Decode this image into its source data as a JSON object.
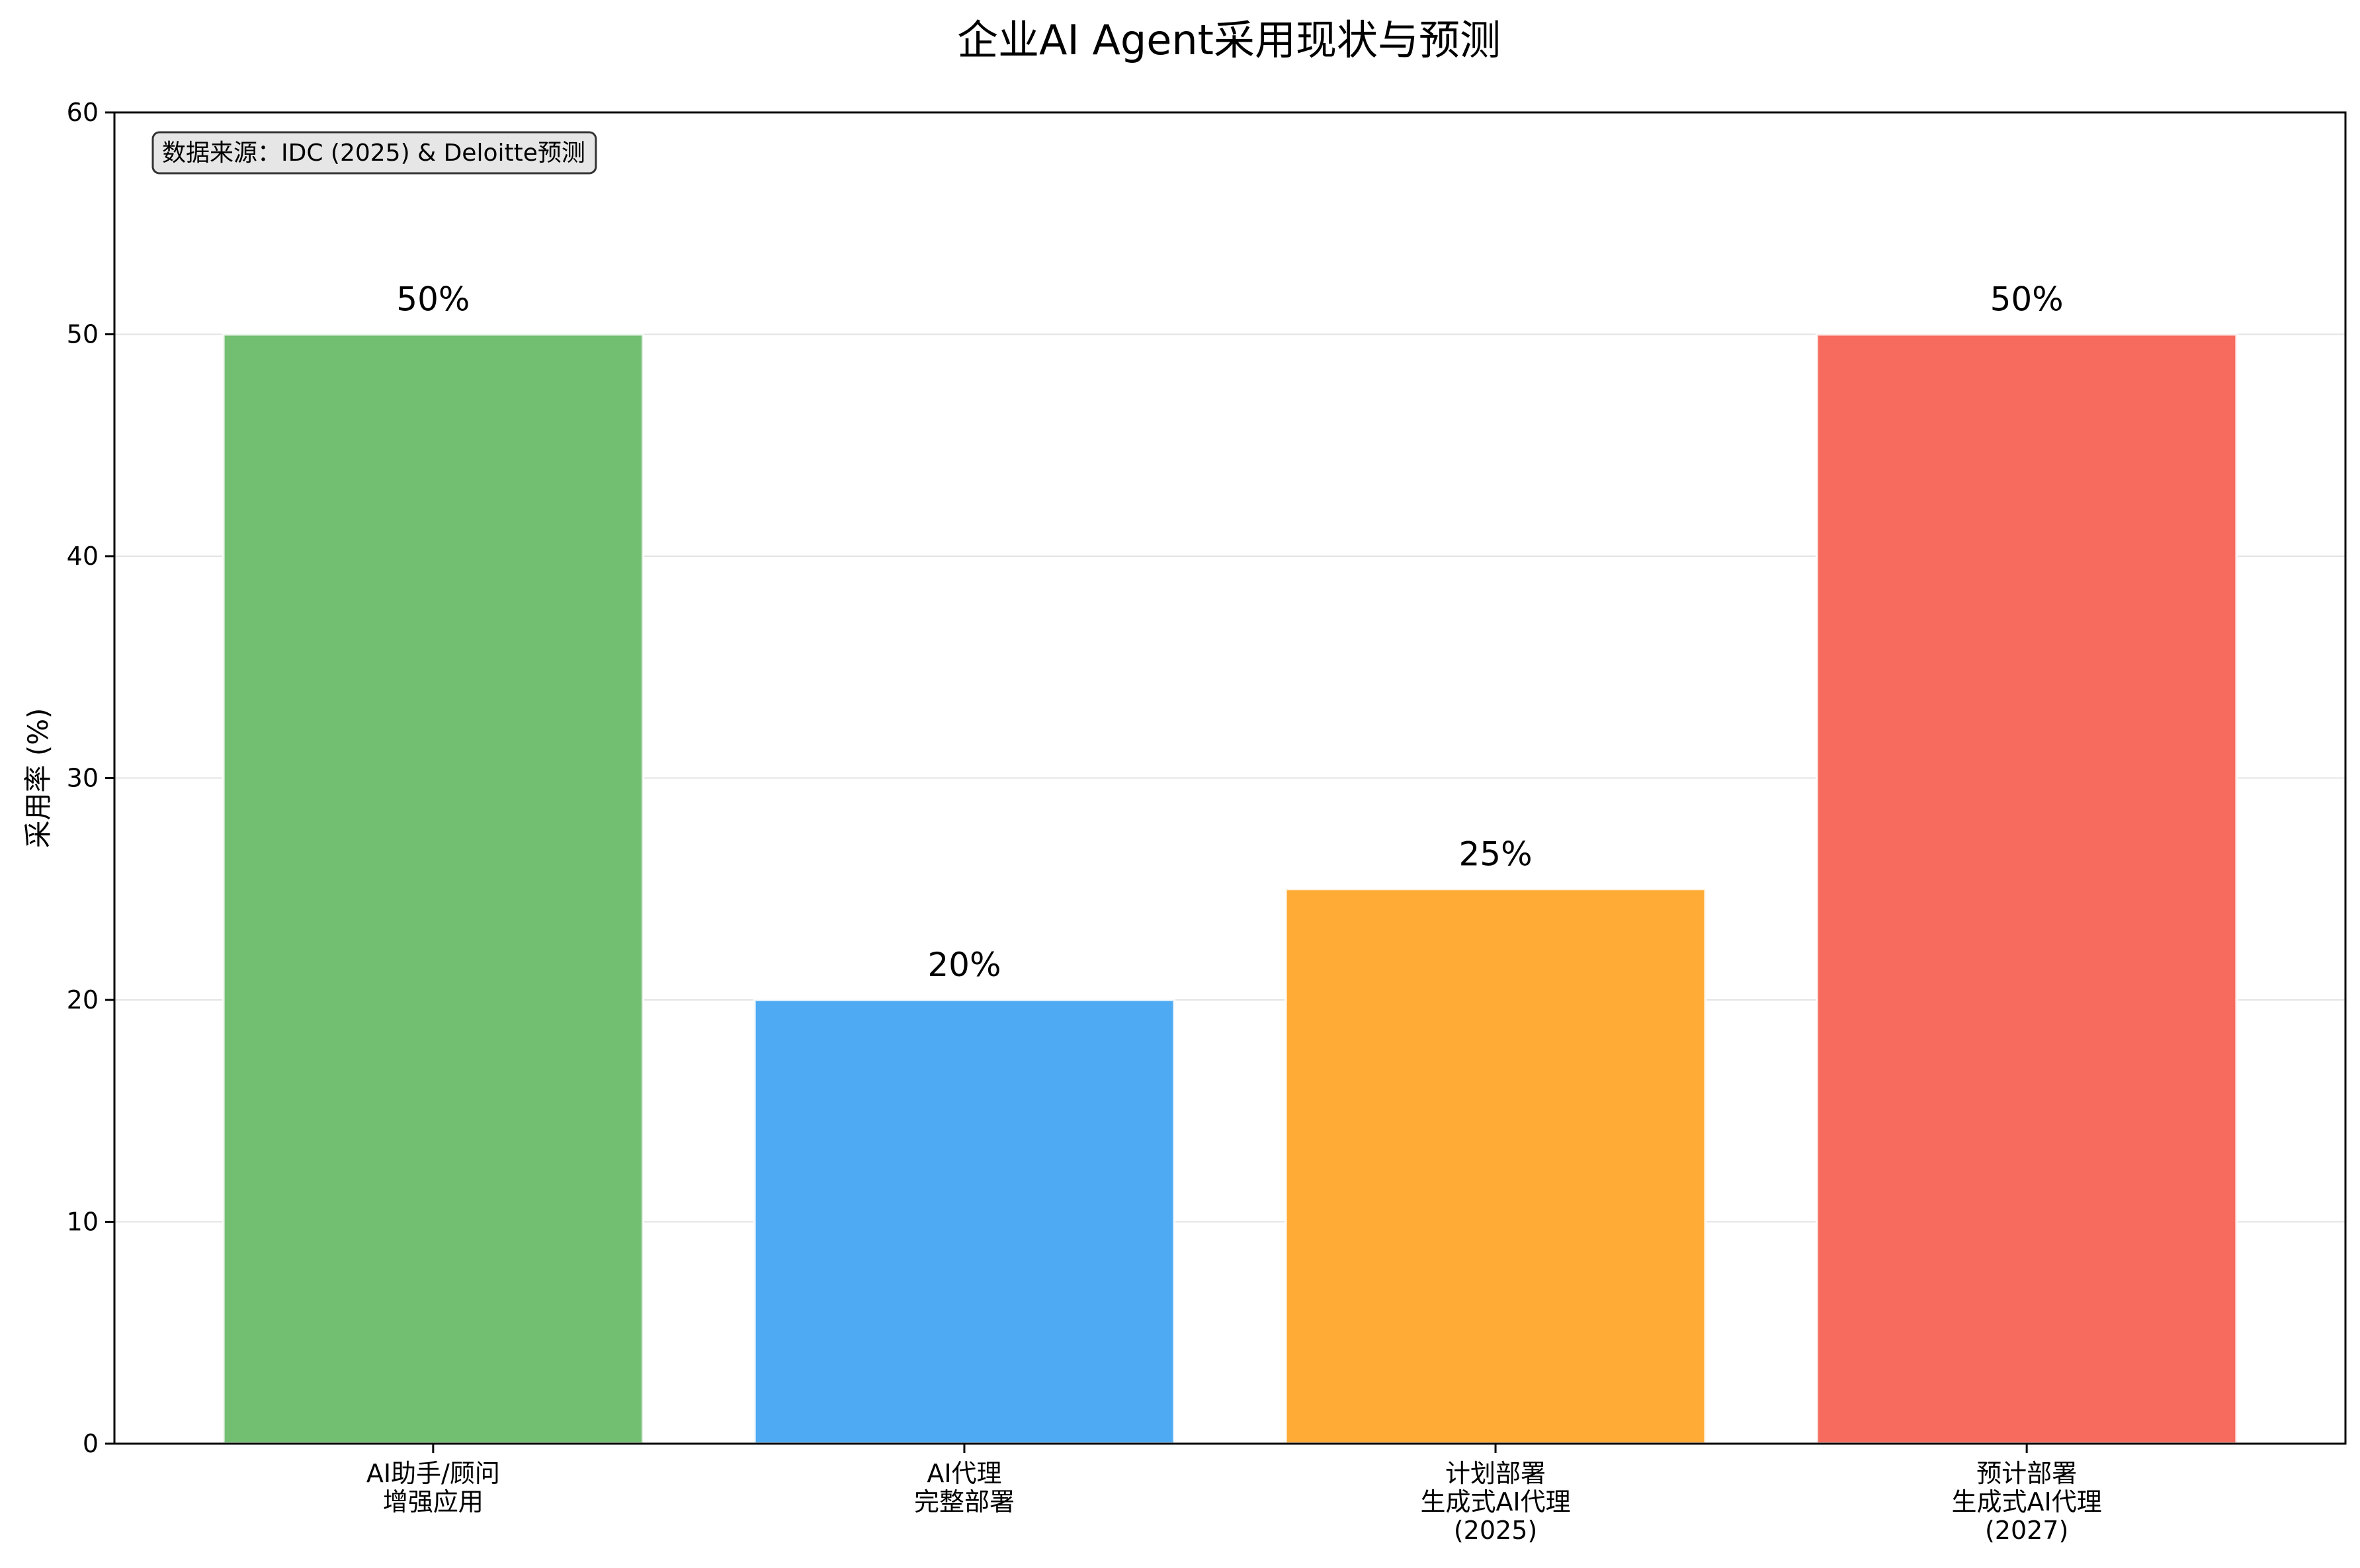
{
  "chart_data": {
    "type": "bar",
    "title": "企业AI Agent采用现状与预测",
    "xlabel": "",
    "ylabel": "采用率 (%)",
    "ylim": [
      0,
      60
    ],
    "yticks": [
      "0",
      "10",
      "20",
      "30",
      "40",
      "50",
      "60"
    ],
    "grid": "horizontal",
    "categories": [
      [
        "AI助手/顾问",
        "增强应用"
      ],
      [
        "AI代理",
        "完整部署"
      ],
      [
        "计划部署",
        "生成式AI代理",
        "(2025)"
      ],
      [
        "预计部署",
        "生成式AI代理",
        "(2027)"
      ]
    ],
    "values": [
      50,
      20,
      25,
      50
    ],
    "data_labels": [
      "50%",
      "20%",
      "25%",
      "50%"
    ],
    "colors": [
      "#72bf72",
      "#4daaf3",
      "#ffab35",
      "#f66b5e"
    ],
    "annotation": "数据来源：IDC (2025) & Deloitte预测"
  }
}
